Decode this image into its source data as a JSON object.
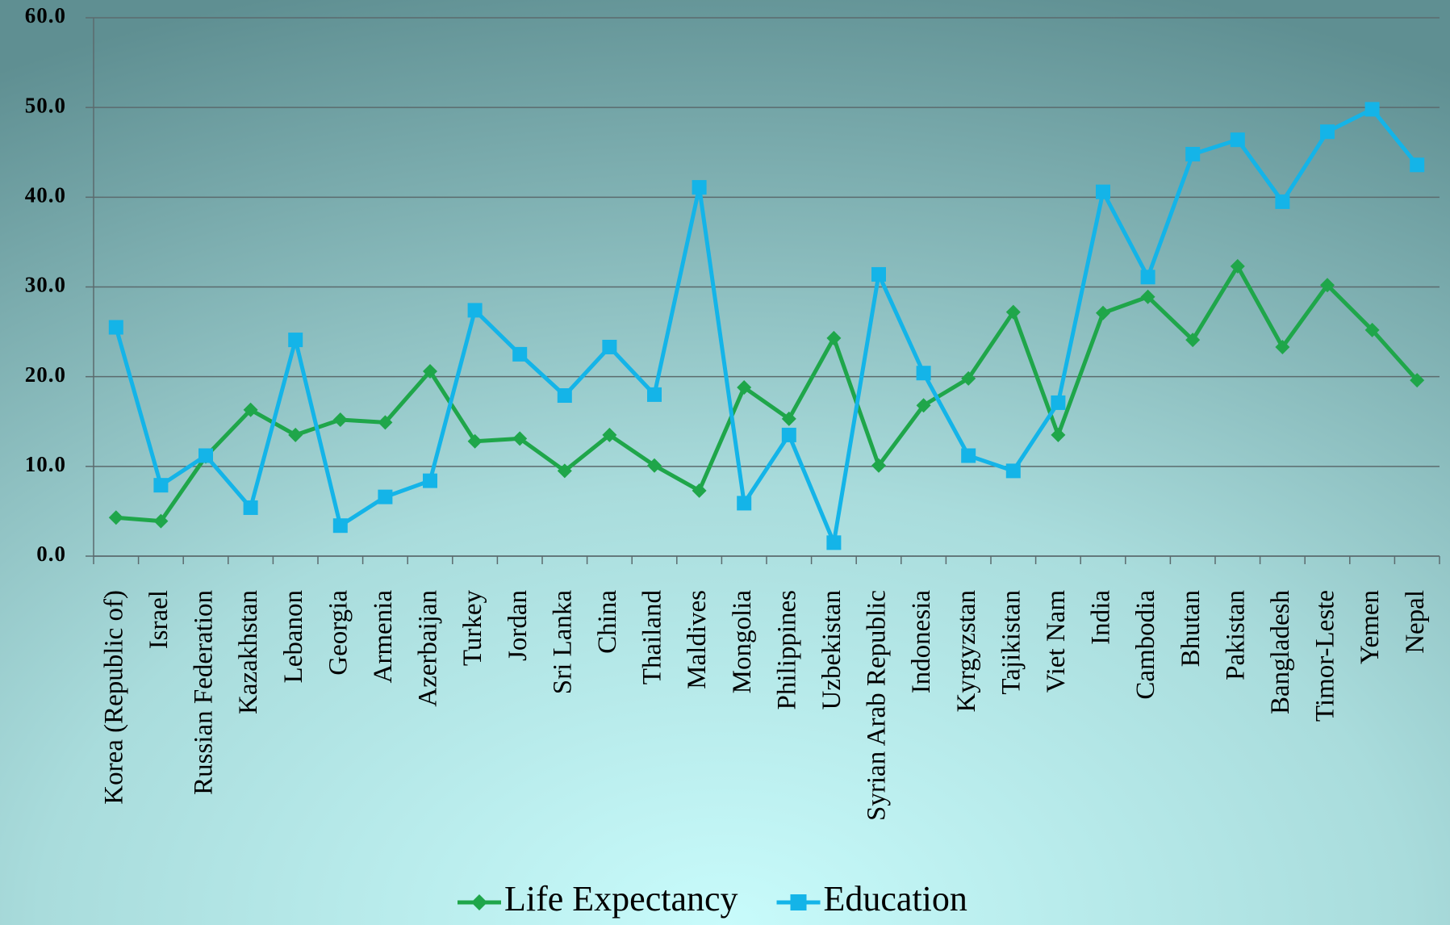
{
  "chart_data": {
    "type": "line",
    "categories": [
      "Korea (Republic of)",
      "Israel",
      "Russian Federation",
      "Kazakhstan",
      "Lebanon",
      "Georgia",
      "Armenia",
      "Azerbaijan",
      "Turkey",
      "Jordan",
      "Sri Lanka",
      "China",
      "Thailand",
      "Maldives",
      "Mongolia",
      "Philippines",
      "Uzbekistan",
      "Syrian Arab Republic",
      "Indonesia",
      "Kyrgyzstan",
      "Tajikistan",
      "Viet Nam",
      "India",
      "Cambodia",
      "Bhutan",
      "Pakistan",
      "Bangladesh",
      "Timor-Leste",
      "Yemen",
      "Nepal"
    ],
    "series": [
      {
        "name": "Life Expectancy",
        "color": "#1fa64a",
        "marker": "diamond",
        "values": [
          4.3,
          3.9,
          11.1,
          16.3,
          13.5,
          15.2,
          14.9,
          20.6,
          12.8,
          13.1,
          9.5,
          13.5,
          10.1,
          7.3,
          18.8,
          15.3,
          24.3,
          10.1,
          16.8,
          19.8,
          27.2,
          13.5,
          27.1,
          28.9,
          24.1,
          32.3,
          23.3,
          30.2,
          25.2,
          19.6
        ]
      },
      {
        "name": "Education",
        "color": "#14b4e8",
        "marker": "square",
        "values": [
          25.5,
          7.9,
          11.2,
          5.4,
          24.1,
          3.4,
          6.6,
          8.4,
          27.4,
          22.5,
          17.9,
          23.3,
          18.0,
          41.1,
          5.9,
          13.5,
          1.5,
          31.4,
          20.4,
          11.2,
          9.5,
          17.1,
          40.6,
          31.1,
          44.8,
          46.4,
          39.5,
          47.3,
          49.8,
          43.6
        ]
      }
    ],
    "ylim": [
      0,
      60
    ],
    "yticks": [
      {
        "value": 0,
        "label": "0.0"
      },
      {
        "value": 10,
        "label": "10.0"
      },
      {
        "value": 20,
        "label": "20.0"
      },
      {
        "value": 30,
        "label": "30.0"
      },
      {
        "value": 40,
        "label": "40.0"
      },
      {
        "value": 50,
        "label": "50.0"
      },
      {
        "value": 60,
        "label": "60.0"
      }
    ],
    "grid": true,
    "legend": "bottom"
  }
}
